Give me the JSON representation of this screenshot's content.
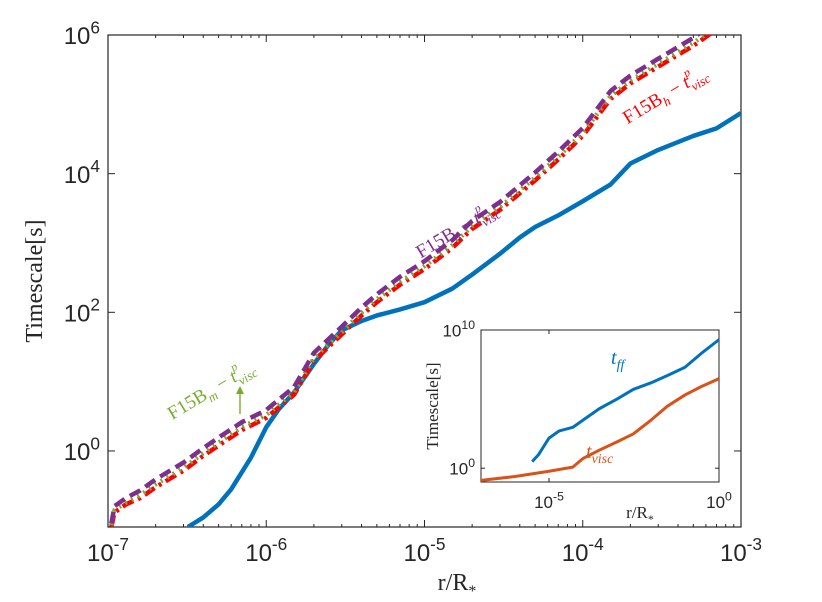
{
  "chart_data": [
    {
      "type": "line",
      "scale": "log-log",
      "xlabel": "r/R",
      "xlabel_sub": "*",
      "ylabel": "Timescale[s]",
      "xlim": [
        1e-07,
        0.001
      ],
      "ylim": [
        0.08,
        1000000
      ],
      "x_ticks": [
        {
          "base": "10",
          "exp": "-7",
          "value": 1e-07
        },
        {
          "base": "10",
          "exp": "-6",
          "value": 1e-06
        },
        {
          "base": "10",
          "exp": "-5",
          "value": 1e-05
        },
        {
          "base": "10",
          "exp": "-4",
          "value": 0.0001
        },
        {
          "base": "10",
          "exp": "-3",
          "value": 0.001
        }
      ],
      "y_ticks": [
        {
          "base": "10",
          "exp": "0",
          "value": 1
        },
        {
          "base": "10",
          "exp": "2",
          "value": 100
        },
        {
          "base": "10",
          "exp": "4",
          "value": 10000
        },
        {
          "base": "10",
          "exp": "6",
          "value": 1000000
        }
      ],
      "series": [
        {
          "name": "t_ff",
          "color": "#0072BD",
          "style": "solid",
          "x": [
            3.2e-07,
            4e-07,
            5e-07,
            6e-07,
            8e-07,
            1e-06,
            1.2e-06,
            1.5e-06,
            2e-06,
            2.5e-06,
            3e-06,
            4e-06,
            5e-06,
            7e-06,
            1e-05,
            1.5e-05,
            2e-05,
            3e-05,
            4e-05,
            5e-05,
            7e-05,
            0.0001,
            0.00015,
            0.0002,
            0.0003,
            0.0005,
            0.0007,
            0.001
          ],
          "values": [
            0.08,
            0.11,
            0.17,
            0.28,
            0.8,
            2.2,
            4.0,
            7.0,
            18,
            35,
            55,
            75,
            90,
            110,
            140,
            220,
            350,
            700,
            1200,
            1700,
            2500,
            4000,
            7000,
            14000,
            22000,
            35000,
            45000,
            75000
          ]
        },
        {
          "name": "F15B_h - t^p_visc",
          "color": "#FF0000",
          "style": "dash-dot",
          "x": [
            1.05e-07,
            1.1e-07,
            1.3e-07,
            1.6e-07,
            2e-07,
            3e-07,
            4e-07,
            5e-07,
            7e-07,
            1e-06,
            1.5e-06,
            2e-06,
            3e-06,
            4e-06,
            5e-06,
            7e-06,
            1e-05,
            1.5e-05,
            2e-05,
            3e-05,
            5e-05,
            7e-05,
            0.0001,
            0.00015,
            0.0002,
            0.0003,
            0.0005,
            0.0007
          ],
          "values": [
            0.08,
            0.13,
            0.17,
            0.21,
            0.3,
            0.52,
            0.85,
            1.2,
            2.0,
            3.0,
            6.5,
            20,
            48,
            90,
            140,
            250,
            420,
            850,
            1600,
            3000,
            8000,
            16000,
            35000,
            120000,
            200000,
            350000,
            700000,
            1200000
          ]
        },
        {
          "name": "F15B_m - t^p_visc",
          "color": "#77AC30",
          "style": "dotted",
          "x": [
            1.05e-07,
            1.1e-07,
            1.3e-07,
            1.6e-07,
            2e-07,
            3e-07,
            4e-07,
            5e-07,
            7e-07,
            1e-06,
            1.5e-06,
            2e-06,
            3e-06,
            4e-06,
            5e-06,
            7e-06,
            1e-05,
            1.5e-05,
            2e-05,
            3e-05,
            5e-05,
            7e-05,
            0.0001,
            0.00015,
            0.0002,
            0.0003,
            0.0005,
            0.0007
          ],
          "values": [
            0.085,
            0.14,
            0.18,
            0.23,
            0.33,
            0.57,
            0.93,
            1.32,
            2.2,
            3.3,
            7.1,
            22,
            52,
            99,
            154,
            275,
            462,
            935,
            1760,
            3300,
            8800,
            17600,
            38500,
            132000,
            220000,
            385000,
            770000,
            1320000
          ]
        },
        {
          "name": "F15B_l - t^p_visc",
          "color": "#7E2F8E",
          "style": "dashed",
          "x": [
            1.05e-07,
            1.1e-07,
            1.3e-07,
            1.6e-07,
            2e-07,
            3e-07,
            4e-07,
            5e-07,
            7e-07,
            1e-06,
            1.5e-06,
            2e-06,
            3e-06,
            4e-06,
            5e-06,
            7e-06,
            1e-05,
            1.5e-05,
            2e-05,
            3e-05,
            5e-05,
            7e-05,
            0.0001,
            0.00015,
            0.0002,
            0.0003,
            0.0005,
            0.0007
          ],
          "values": [
            0.09,
            0.16,
            0.21,
            0.27,
            0.39,
            0.68,
            1.1,
            1.56,
            2.6,
            3.9,
            8.4,
            26,
            62,
            117,
            182,
            325,
            546,
            1100,
            2080,
            3900,
            10400,
            20800,
            45500,
            156000,
            260000,
            455000,
            910000,
            1560000
          ]
        }
      ],
      "annotations": [
        {
          "main": "F15B",
          "sub": "h",
          "dash": " − ",
          "t": "t",
          "sup": "p",
          "tsub": "visc",
          "color": "#FF0000"
        },
        {
          "main": "F15B",
          "sub": "l",
          "dash": " − ",
          "t": "t",
          "sup": "p",
          "tsub": "visc",
          "color": "#7E2F8E"
        },
        {
          "main": "F15B",
          "sub": "m",
          "dash": " − ",
          "t": "t",
          "sup": "p",
          "tsub": "visc",
          "color": "#77AC30",
          "arrow": true
        }
      ]
    },
    {
      "type": "line",
      "scale": "log-log",
      "inset": true,
      "xlabel": "r/R",
      "xlabel_sub": "*",
      "ylabel": "Timescale[s]",
      "xlim": [
        1e-07,
        1
      ],
      "ylim": [
        0.1,
        10000000000.0
      ],
      "x_ticks": [
        {
          "base": "10",
          "exp": "-5",
          "value": 1e-05
        },
        {
          "base": "10",
          "exp": "0",
          "value": 1
        }
      ],
      "y_ticks": [
        {
          "base": "10",
          "exp": "0",
          "value": 1
        },
        {
          "base": "10",
          "exp": "10",
          "value": 10000000000.0
        }
      ],
      "series": [
        {
          "name": "t_ff",
          "label_main": "t",
          "label_sub": "ff",
          "color": "#0072BD",
          "x": [
            3.2e-06,
            5e-06,
            1e-05,
            2e-05,
            5e-05,
            0.0001,
            0.0003,
            0.001,
            0.003,
            0.01,
            0.03,
            0.1,
            0.3,
            1
          ],
          "values": [
            3,
            10,
            150,
            500,
            900,
            3000,
            20000,
            100000,
            500000,
            1500000,
            5000000,
            20000000,
            200000000,
            2000000000
          ]
        },
        {
          "name": "t_visc",
          "label_main": "t",
          "label_sub": "visc",
          "color": "#D95319",
          "x": [
            1e-07,
            1e-06,
            1e-05,
            5e-05,
            0.0001,
            0.0003,
            0.001,
            0.003,
            0.01,
            0.03,
            0.1,
            0.3,
            1
          ],
          "values": [
            0.13,
            0.25,
            0.6,
            1.2,
            5,
            20,
            80,
            300,
            3000,
            30000,
            200000,
            800000,
            3000000
          ]
        }
      ]
    }
  ]
}
